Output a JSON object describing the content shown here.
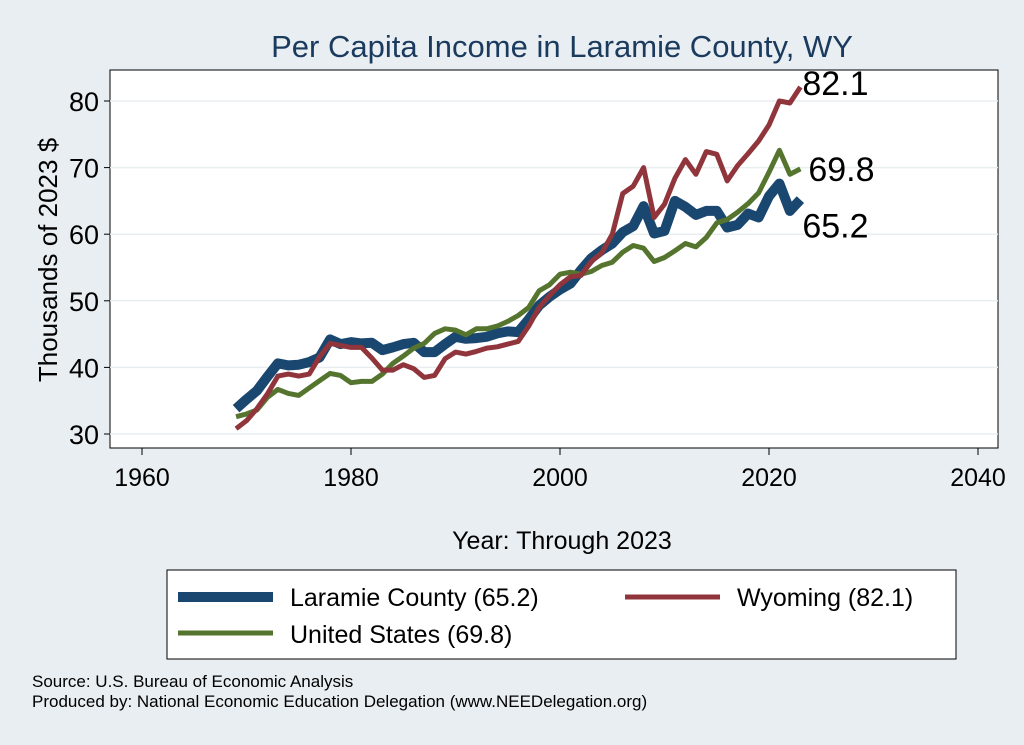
{
  "chart_data": {
    "type": "line",
    "title": "Per Capita Income in Laramie County, WY",
    "xlabel": "Year: Through 2023",
    "ylabel": "Thousands of 2023 $",
    "xlim": [
      1960,
      2040
    ],
    "ylim": [
      28,
      85
    ],
    "x_ticks": [
      1960,
      1980,
      2000,
      2020,
      2040
    ],
    "y_ticks": [
      30,
      40,
      50,
      60,
      70,
      80
    ],
    "grid": "horizontal",
    "legend_placement": "bottom",
    "x": [
      1969,
      1970,
      1971,
      1972,
      1973,
      1974,
      1975,
      1976,
      1977,
      1978,
      1979,
      1980,
      1981,
      1982,
      1983,
      1984,
      1985,
      1986,
      1987,
      1988,
      1989,
      1990,
      1991,
      1992,
      1993,
      1994,
      1995,
      1996,
      1997,
      1998,
      1999,
      2000,
      2001,
      2002,
      2003,
      2004,
      2005,
      2006,
      2007,
      2008,
      2009,
      2010,
      2011,
      2012,
      2013,
      2014,
      2015,
      2016,
      2017,
      2018,
      2019,
      2020,
      2021,
      2022,
      2023
    ],
    "series": [
      {
        "name": "Laramie County (65.2)",
        "color": "#1a476f",
        "end_label": "65.2",
        "values": [
          33.8,
          35.2,
          36.5,
          38.6,
          40.6,
          40.3,
          40.4,
          40.8,
          41.5,
          44.2,
          43.5,
          43.8,
          43.6,
          43.7,
          42.6,
          43.0,
          43.5,
          43.7,
          42.3,
          42.3,
          43.5,
          44.6,
          44.3,
          44.4,
          44.6,
          45.1,
          45.4,
          45.3,
          47.2,
          49.3,
          50.6,
          51.7,
          52.6,
          54.6,
          56.4,
          57.6,
          58.6,
          60.3,
          61.2,
          64.2,
          60.1,
          60.5,
          65.0,
          64.1,
          62.9,
          63.5,
          63.5,
          61.0,
          61.4,
          63.1,
          62.5,
          65.7,
          67.6,
          63.5,
          65.2
        ]
      },
      {
        "name": "Wyoming (82.1)",
        "color": "#90353b",
        "end_label": "82.1",
        "values": [
          30.8,
          32.0,
          33.8,
          36.0,
          38.7,
          39.0,
          38.7,
          39.0,
          41.6,
          43.6,
          43.3,
          43.0,
          43.0,
          41.4,
          39.6,
          39.6,
          40.4,
          39.8,
          38.5,
          38.8,
          41.3,
          42.3,
          42.0,
          42.4,
          42.9,
          43.1,
          43.5,
          43.9,
          46.2,
          49.0,
          50.8,
          52.4,
          53.6,
          53.8,
          55.9,
          57.2,
          60.0,
          66.1,
          67.2,
          70.0,
          62.5,
          64.5,
          68.4,
          71.2,
          69.0,
          72.4,
          72.0,
          68.0,
          70.3,
          72.1,
          74.0,
          76.4,
          80.0,
          79.7,
          82.1
        ]
      },
      {
        "name": "United States (69.8)",
        "color": "#55752f",
        "end_label": "69.8",
        "values": [
          32.6,
          33.0,
          33.6,
          35.5,
          36.7,
          36.1,
          35.8,
          36.9,
          38.0,
          39.1,
          38.8,
          37.7,
          37.9,
          37.9,
          39.0,
          40.6,
          41.7,
          42.9,
          43.6,
          45.1,
          45.8,
          45.6,
          44.9,
          45.8,
          45.8,
          46.2,
          46.9,
          47.8,
          49.0,
          51.5,
          52.4,
          54.0,
          54.3,
          54.0,
          54.4,
          55.3,
          55.8,
          57.3,
          58.3,
          57.9,
          55.9,
          56.5,
          57.5,
          58.6,
          58.1,
          59.5,
          61.7,
          62.2,
          63.3,
          64.6,
          66.2,
          69.3,
          72.6,
          69.0,
          69.8
        ]
      }
    ]
  },
  "sources": [
    "Source: U.S. Bureau of Economic Analysis",
    "Produced by: National Economic Education Delegation (www.NEEDelegation.org)"
  ]
}
